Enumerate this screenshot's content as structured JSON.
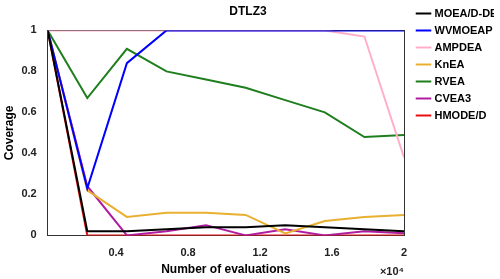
{
  "chart_data": {
    "type": "line",
    "title": "DTLZ3",
    "x_label": "Number of evaluations",
    "y_label": "Coverage",
    "annotations": [
      "×10⁴"
    ],
    "x": [
      0.02,
      0.24,
      0.46,
      0.68,
      0.9,
      1.12,
      1.34,
      1.56,
      1.78,
      2.0
    ],
    "xlim": [
      0.02,
      2
    ],
    "xticks": [
      0.4,
      0.8,
      1.2,
      1.6,
      2
    ],
    "ylim": [
      0,
      1
    ],
    "yticks": [
      0,
      0.2,
      0.4,
      0.6,
      0.8,
      1
    ],
    "grid": false,
    "legend": "right",
    "series": [
      {
        "name": "MOEA/D-DE",
        "color": "#000000",
        "values": [
          1,
          0.02,
          0.02,
          0.03,
          0.04,
          0.04,
          0.05,
          0.04,
          0.03,
          0.02
        ]
      },
      {
        "name": "WVMOEAP",
        "color": "#0000ff",
        "values": [
          1,
          0.23,
          0.84,
          1,
          1,
          1,
          1,
          1,
          1,
          1
        ]
      },
      {
        "name": "AMPDEA",
        "color": "#ffb0c8",
        "values": [
          1,
          1,
          1,
          1,
          1,
          1,
          1,
          1,
          0.97,
          0.38
        ]
      },
      {
        "name": "KnEA",
        "color": "#e8b030",
        "values": [
          1,
          0.22,
          0.09,
          0.11,
          0.11,
          0.1,
          0.01,
          0.07,
          0.09,
          0.1
        ]
      },
      {
        "name": "RVEA",
        "color": "#1f7f1f",
        "values": [
          1,
          0.67,
          0.91,
          0.8,
          0.76,
          0.72,
          0.66,
          0.6,
          0.48,
          0.49
        ]
      },
      {
        "name": "CVEA3",
        "color": "#b01ca0",
        "values": [
          1,
          0.24,
          0,
          0.02,
          0.05,
          0,
          0.03,
          0,
          0.02,
          0.01
        ]
      },
      {
        "name": "HMODE/D",
        "color": "#e81010",
        "values": [
          1,
          0,
          0,
          0,
          0,
          0,
          0,
          0,
          0,
          0
        ]
      }
    ]
  }
}
